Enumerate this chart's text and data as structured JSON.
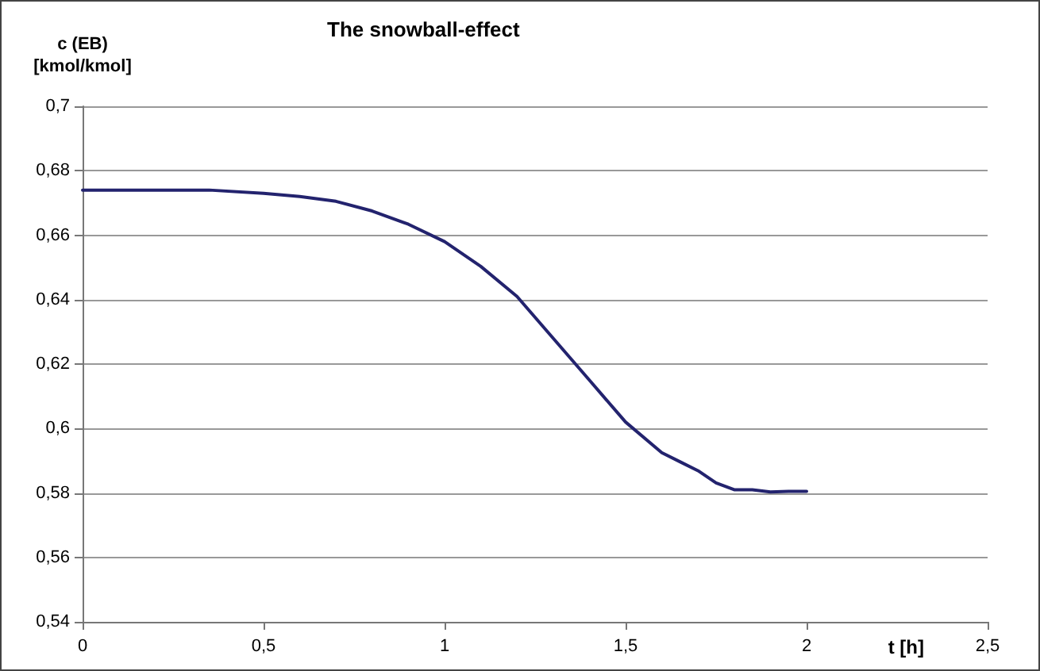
{
  "chart_data": {
    "type": "line",
    "title": "The snowball-effect",
    "xlabel": "t [h]",
    "ylabel": "c (EB)\n[kmol/kmol]",
    "series": [
      {
        "color": "#23236e",
        "x": [
          0,
          0.2,
          0.35,
          0.5,
          0.6,
          0.7,
          0.8,
          0.9,
          1.0,
          1.1,
          1.2,
          1.3,
          1.4,
          1.5,
          1.6,
          1.65,
          1.7,
          1.75,
          1.8,
          1.85,
          1.9,
          1.95,
          2.0
        ],
        "values": [
          0.674,
          0.674,
          0.674,
          0.673,
          0.672,
          0.6705,
          0.6675,
          0.6634,
          0.658,
          0.6503,
          0.641,
          0.628,
          0.615,
          0.602,
          0.5925,
          0.5897,
          0.5869,
          0.5831,
          0.581,
          0.581,
          0.5803,
          0.5805,
          0.5805
        ]
      }
    ],
    "xlim": [
      0,
      2.5
    ],
    "xticks": [
      {
        "value": 0,
        "label": "0"
      },
      {
        "value": 0.5,
        "label": "0,5"
      },
      {
        "value": 1,
        "label": "1"
      },
      {
        "value": 1.5,
        "label": "1,5"
      },
      {
        "value": 2,
        "label": "2"
      },
      {
        "value": 2.5,
        "label": "2,5"
      }
    ],
    "ylim": [
      0.54,
      0.7
    ],
    "yticks": [
      {
        "value": 0.54,
        "label": "0,54"
      },
      {
        "value": 0.56,
        "label": "0,56"
      },
      {
        "value": 0.58,
        "label": "0,58"
      },
      {
        "value": 0.6,
        "label": "0,6"
      },
      {
        "value": 0.62,
        "label": "0,62"
      },
      {
        "value": 0.64,
        "label": "0,64"
      },
      {
        "value": 0.66,
        "label": "0,66"
      },
      {
        "value": 0.68,
        "label": "0,68"
      },
      {
        "value": 0.7,
        "label": "0,7"
      }
    ],
    "grid": "y",
    "marker": "none",
    "line_style": "solid"
  }
}
